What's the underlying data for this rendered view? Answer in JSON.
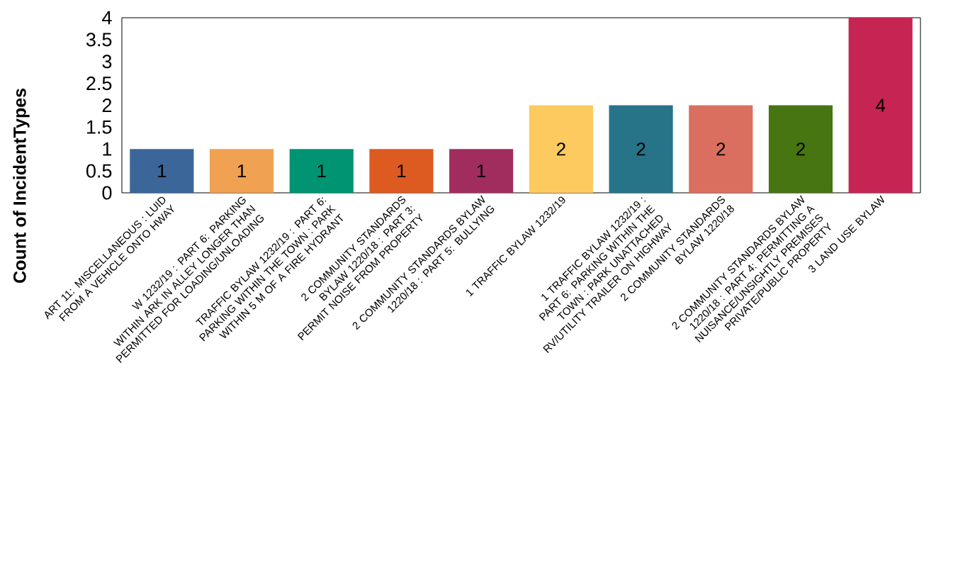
{
  "chart_data": {
    "type": "bar",
    "ylabel": "Count of IncidentTypes",
    "categories": [
      "ART 11: MISCELLANEOUS : LUID FROM A VEHICLE ONTO HWAY",
      "W 1232/19 : PART 6: PARKING WITHIN ARK IN ALLEY LONGER THAN PERMITTED FOR LOADING/UNLOADING",
      "TRAFFIC BYLAW 1232/19 : PART 6: PARKING WITHIN THE TOWN : PARK WITHIN 5 M OF A FIRE HYDRANT",
      "2 COMMUNITY STANDARDS BYLAW 1220/18 : PART 3: PERMIT NOISE FROM PROPERTY",
      "2 COMMUNITY STANDARDS BYLAW 1220/18 : PART 5: BULLYING",
      "1 TRAFFIC BYLAW 1232/19",
      "1 TRAFFIC BYLAW 1232/19 : PART 6: PARKING WITHIN THE TOWN : PARK UNATTACHED RV/UTILITY TRAILER ON HIGHWAY",
      "2 COMMUNITY STANDARDS BYLAW 1220/18",
      "2 COMMUNITY STANDARDS BYLAW 1220/18 : PART 4: PERMITTING A NUISANCE/UNSIGHTLY PREMISES PRIVATE/PUBLIC PROPERTY",
      "3 LAND USE BYLAW"
    ],
    "values": [
      1,
      1,
      1,
      1,
      1,
      2,
      2,
      2,
      2,
      4
    ],
    "colors": [
      "#3b6699",
      "#f0a152",
      "#009472",
      "#dd5a21",
      "#a12d5e",
      "#fdca5f",
      "#277489",
      "#da6f60",
      "#467512",
      "#c62553"
    ],
    "ylim": [
      0,
      4
    ],
    "yticks": [
      0,
      0.5,
      1,
      1.5,
      2,
      2.5,
      3,
      3.5,
      4
    ],
    "data_labels": true
  }
}
